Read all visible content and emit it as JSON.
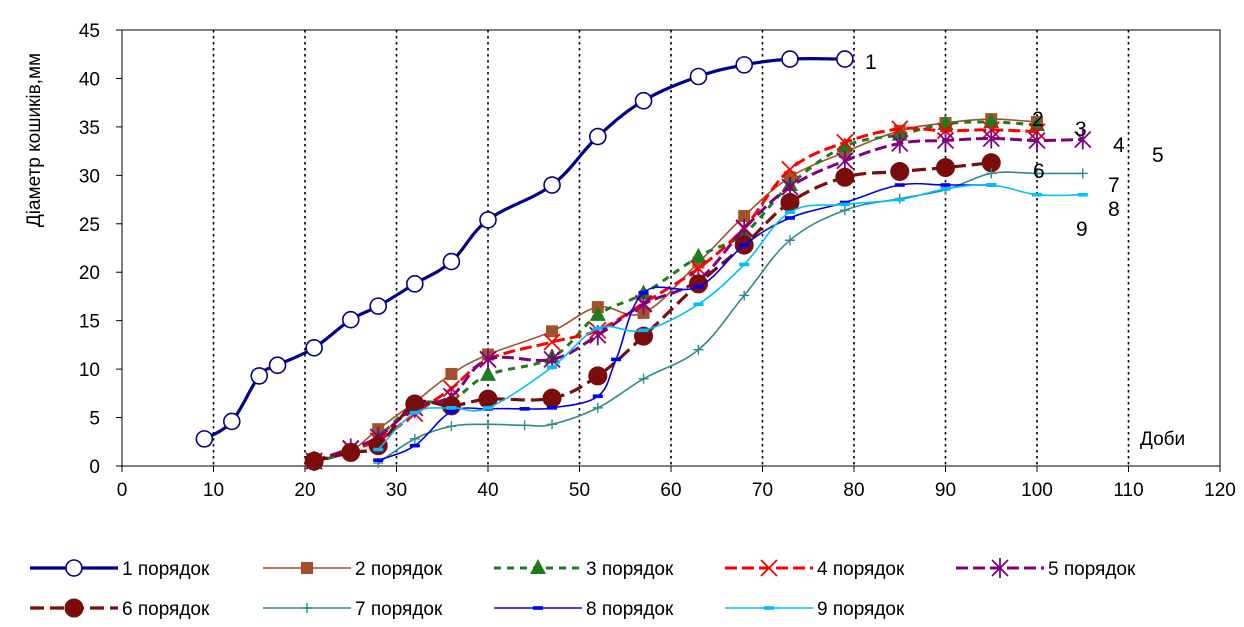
{
  "chart_data": {
    "type": "line",
    "ylabel": "Діаметр кошиків,мм",
    "xlabel": "Доби",
    "xlim": [
      0,
      120
    ],
    "ylim": [
      0,
      45
    ],
    "x_ticks": [
      0,
      10,
      20,
      30,
      40,
      50,
      60,
      70,
      80,
      90,
      100,
      110,
      120
    ],
    "y_ticks": [
      0,
      5,
      10,
      15,
      20,
      25,
      30,
      35,
      40,
      45
    ],
    "grid": "vertical dotted lines",
    "legend_position": "bottom",
    "series": [
      {
        "name": "1 порядок",
        "end_label": "1",
        "color": "#00008B",
        "width": 3.2,
        "dash": "",
        "marker": "circle-open",
        "points": [
          [
            9,
            2.8
          ],
          [
            12,
            4.6
          ],
          [
            15,
            9.3
          ],
          [
            17,
            10.4
          ],
          [
            21,
            12.2
          ],
          [
            25,
            15.1
          ],
          [
            28,
            16.5
          ],
          [
            32,
            18.8
          ],
          [
            36,
            21.1
          ],
          [
            40,
            25.4
          ],
          [
            47,
            29
          ],
          [
            52,
            34
          ],
          [
            57,
            37.7
          ],
          [
            63,
            40.2
          ],
          [
            68,
            41.4
          ],
          [
            73,
            42
          ],
          [
            79,
            42
          ]
        ]
      },
      {
        "name": "2 порядок",
        "end_label": "2",
        "color": "#A0522D",
        "width": 1.6,
        "dash": "",
        "marker": "square",
        "points": [
          [
            21,
            0.5
          ],
          [
            25,
            1.6
          ],
          [
            28,
            3.8
          ],
          [
            32,
            6.6
          ],
          [
            36,
            9.5
          ],
          [
            40,
            11.5
          ],
          [
            47,
            13.9
          ],
          [
            52,
            16.4
          ],
          [
            57,
            15.8
          ],
          [
            63,
            21
          ],
          [
            68,
            25.8
          ],
          [
            73,
            29.8
          ],
          [
            79,
            32.4
          ],
          [
            85,
            34.6
          ],
          [
            90,
            35.4
          ],
          [
            95,
            35.8
          ],
          [
            100,
            35.5
          ]
        ]
      },
      {
        "name": "3 порядок",
        "end_label": "3",
        "color": "#1E7B1E",
        "width": 3,
        "dash": "7,6",
        "marker": "triangle",
        "points": [
          [
            21,
            0.4
          ],
          [
            25,
            1.5
          ],
          [
            28,
            3
          ],
          [
            32,
            6.3
          ],
          [
            36,
            6.8
          ],
          [
            40,
            9.4
          ],
          [
            47,
            11.2
          ],
          [
            52,
            15.6
          ],
          [
            57,
            17.8
          ],
          [
            63,
            21.6
          ],
          [
            68,
            24
          ],
          [
            73,
            29
          ],
          [
            79,
            33
          ],
          [
            85,
            34.2
          ],
          [
            90,
            35.3
          ],
          [
            95,
            35.5
          ],
          [
            100,
            35.2
          ]
        ]
      },
      {
        "name": "4 порядок",
        "end_label": "4",
        "color": "#FF0000",
        "width": 3,
        "dash": "12,5",
        "marker": "x",
        "points": [
          [
            21,
            0.5
          ],
          [
            25,
            1.8
          ],
          [
            28,
            2.6
          ],
          [
            32,
            5.4
          ],
          [
            36,
            8
          ],
          [
            40,
            11
          ],
          [
            47,
            12.8
          ],
          [
            52,
            14
          ],
          [
            57,
            16.8
          ],
          [
            63,
            20.4
          ],
          [
            68,
            24.6
          ],
          [
            73,
            30.6
          ],
          [
            79,
            33.4
          ],
          [
            85,
            34.8
          ],
          [
            90,
            34.6
          ],
          [
            95,
            34.7
          ],
          [
            100,
            34.5
          ]
        ]
      },
      {
        "name": "5 порядок",
        "end_label": "5",
        "color": "#800080",
        "width": 3,
        "dash": "12,5",
        "marker": "asterisk",
        "points": [
          [
            21,
            0.5
          ],
          [
            25,
            1.8
          ],
          [
            28,
            3
          ],
          [
            32,
            6
          ],
          [
            36,
            7.2
          ],
          [
            40,
            11
          ],
          [
            47,
            11
          ],
          [
            52,
            13.5
          ],
          [
            57,
            16.7
          ],
          [
            63,
            19.2
          ],
          [
            68,
            24.5
          ],
          [
            73,
            28.8
          ],
          [
            79,
            31.5
          ],
          [
            85,
            33.3
          ],
          [
            90,
            33.6
          ],
          [
            95,
            33.8
          ],
          [
            100,
            33.6
          ],
          [
            105,
            33.7
          ]
        ]
      },
      {
        "name": "6 порядок",
        "end_label": "6",
        "color": "#7B0C0C",
        "width": 3.2,
        "dash": "14,6",
        "marker": "circle-filled",
        "points": [
          [
            21,
            0.5
          ],
          [
            25,
            1.4
          ],
          [
            28,
            2.1
          ],
          [
            32,
            6.4
          ],
          [
            36,
            6.2
          ],
          [
            40,
            6.9
          ],
          [
            47,
            7
          ],
          [
            52,
            9.3
          ],
          [
            57,
            13.4
          ],
          [
            63,
            18.8
          ],
          [
            68,
            22.8
          ],
          [
            73,
            27.2
          ],
          [
            79,
            29.8
          ],
          [
            85,
            30.4
          ],
          [
            90,
            30.8
          ],
          [
            95,
            31.3
          ]
        ]
      },
      {
        "name": "7 порядок",
        "end_label": "7",
        "color": "#2E8B8B",
        "width": 1.6,
        "dash": "",
        "marker": "plus",
        "points": [
          [
            28,
            0.3
          ],
          [
            32,
            2.8
          ],
          [
            36,
            4.1
          ],
          [
            40,
            4.3
          ],
          [
            44,
            4.2
          ],
          [
            47,
            4.3
          ],
          [
            52,
            6
          ],
          [
            57,
            9
          ],
          [
            63,
            12
          ],
          [
            68,
            17.6
          ],
          [
            73,
            23.3
          ],
          [
            79,
            26.4
          ],
          [
            85,
            27.6
          ],
          [
            90,
            28.5
          ],
          [
            95,
            30.2
          ],
          [
            100,
            30.2
          ],
          [
            105,
            30.2
          ]
        ]
      },
      {
        "name": "8 порядок",
        "end_label": "8",
        "color": "#0000EE",
        "width": 1.6,
        "dash": "",
        "marker": "dash",
        "points": [
          [
            28,
            0.6
          ],
          [
            32,
            2.1
          ],
          [
            36,
            5.6
          ],
          [
            40,
            5.9
          ],
          [
            44,
            5.9
          ],
          [
            47,
            6
          ],
          [
            52,
            7.2
          ],
          [
            54,
            11
          ],
          [
            57,
            17.9
          ],
          [
            63,
            18.5
          ],
          [
            68,
            22.8
          ],
          [
            73,
            25.6
          ],
          [
            79,
            27.2
          ],
          [
            85,
            29
          ],
          [
            90,
            29
          ],
          [
            95,
            29
          ]
        ]
      },
      {
        "name": "9 порядок",
        "end_label": "9",
        "color": "#00BFFF",
        "width": 1.6,
        "dash": "",
        "marker": "dash",
        "points": [
          [
            28,
            1.7
          ],
          [
            32,
            5.5
          ],
          [
            36,
            6
          ],
          [
            40,
            6
          ],
          [
            47,
            10.2
          ],
          [
            52,
            14.2
          ],
          [
            57,
            14
          ],
          [
            63,
            16.7
          ],
          [
            68,
            20.8
          ],
          [
            73,
            26.2
          ],
          [
            79,
            27
          ],
          [
            85,
            27.5
          ],
          [
            90,
            28.6
          ],
          [
            95,
            29
          ],
          [
            100,
            28
          ],
          [
            105,
            28
          ]
        ]
      }
    ]
  }
}
